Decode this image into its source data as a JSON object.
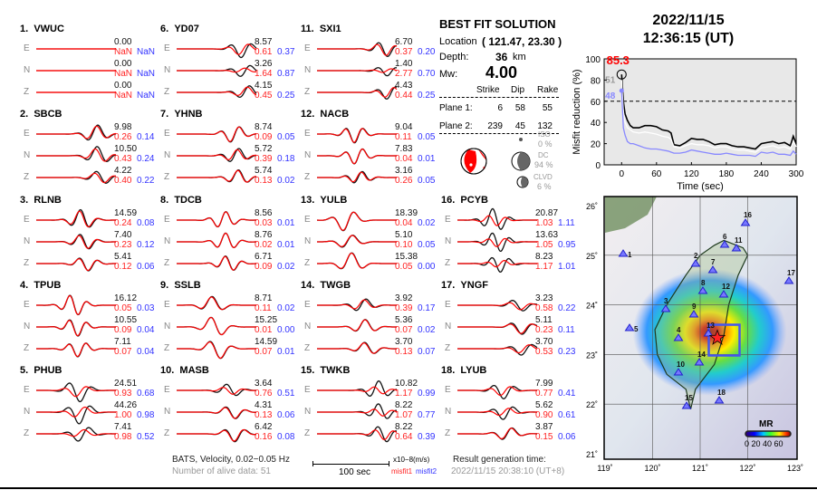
{
  "stations": [
    {
      "no": "1.",
      "name": "VWUC",
      "comps": [
        {
          "c": "E",
          "peak": "0.00",
          "m1": "NaN",
          "m2": "NaN"
        },
        {
          "c": "N",
          "peak": "0.00",
          "m1": "NaN",
          "m2": "NaN"
        },
        {
          "c": "Z",
          "peak": "0.00",
          "m1": "NaN",
          "m2": "NaN"
        }
      ]
    },
    {
      "no": "2.",
      "name": "SBCB",
      "comps": [
        {
          "c": "E",
          "peak": "9.98",
          "m1": "0.26",
          "m2": "0.14"
        },
        {
          "c": "N",
          "peak": "10.50",
          "m1": "0.43",
          "m2": "0.24"
        },
        {
          "c": "Z",
          "peak": "4.22",
          "m1": "0.40",
          "m2": "0.22"
        }
      ]
    },
    {
      "no": "3.",
      "name": "RLNB",
      "comps": [
        {
          "c": "E",
          "peak": "14.59",
          "m1": "0.24",
          "m2": "0.08"
        },
        {
          "c": "N",
          "peak": "7.40",
          "m1": "0.23",
          "m2": "0.12"
        },
        {
          "c": "Z",
          "peak": "5.41",
          "m1": "0.12",
          "m2": "0.06"
        }
      ]
    },
    {
      "no": "4.",
      "name": "TPUB",
      "comps": [
        {
          "c": "E",
          "peak": "16.12",
          "m1": "0.05",
          "m2": "0.03"
        },
        {
          "c": "N",
          "peak": "10.55",
          "m1": "0.09",
          "m2": "0.04"
        },
        {
          "c": "Z",
          "peak": "7.11",
          "m1": "0.07",
          "m2": "0.04"
        }
      ]
    },
    {
      "no": "5.",
      "name": "PHUB",
      "comps": [
        {
          "c": "E",
          "peak": "24.51",
          "m1": "0.93",
          "m2": "0.68"
        },
        {
          "c": "N",
          "peak": "44.26",
          "m1": "1.00",
          "m2": "0.98"
        },
        {
          "c": "Z",
          "peak": "7.41",
          "m1": "0.98",
          "m2": "0.52"
        }
      ]
    },
    {
      "no": "6.",
      "name": "YD07",
      "comps": [
        {
          "c": "E",
          "peak": "8.57",
          "m1": "0.61",
          "m2": "0.37"
        },
        {
          "c": "N",
          "peak": "3.26",
          "m1": "1.64",
          "m2": "0.87"
        },
        {
          "c": "Z",
          "peak": "4.15",
          "m1": "0.45",
          "m2": "0.25"
        }
      ]
    },
    {
      "no": "7.",
      "name": "YHNB",
      "comps": [
        {
          "c": "E",
          "peak": "8.74",
          "m1": "0.09",
          "m2": "0.05"
        },
        {
          "c": "N",
          "peak": "5.72",
          "m1": "0.39",
          "m2": "0.18"
        },
        {
          "c": "Z",
          "peak": "5.74",
          "m1": "0.13",
          "m2": "0.02"
        }
      ]
    },
    {
      "no": "8.",
      "name": "TDCB",
      "comps": [
        {
          "c": "E",
          "peak": "8.56",
          "m1": "0.03",
          "m2": "0.01"
        },
        {
          "c": "N",
          "peak": "8.76",
          "m1": "0.02",
          "m2": "0.01"
        },
        {
          "c": "Z",
          "peak": "6.71",
          "m1": "0.09",
          "m2": "0.02"
        }
      ]
    },
    {
      "no": "9.",
      "name": "SSLB",
      "comps": [
        {
          "c": "E",
          "peak": "8.71",
          "m1": "0.11",
          "m2": "0.02"
        },
        {
          "c": "N",
          "peak": "15.25",
          "m1": "0.01",
          "m2": "0.00"
        },
        {
          "c": "Z",
          "peak": "14.59",
          "m1": "0.07",
          "m2": "0.01"
        }
      ]
    },
    {
      "no": "10.",
      "name": "MASB",
      "comps": [
        {
          "c": "E",
          "peak": "3.64",
          "m1": "0.76",
          "m2": "0.51"
        },
        {
          "c": "N",
          "peak": "4.31",
          "m1": "0.13",
          "m2": "0.06"
        },
        {
          "c": "Z",
          "peak": "6.42",
          "m1": "0.16",
          "m2": "0.08"
        }
      ]
    },
    {
      "no": "11.",
      "name": "SXI1",
      "comps": [
        {
          "c": "E",
          "peak": "6.70",
          "m1": "0.37",
          "m2": "0.20"
        },
        {
          "c": "N",
          "peak": "1.40",
          "m1": "2.77",
          "m2": "0.70"
        },
        {
          "c": "Z",
          "peak": "4.43",
          "m1": "0.44",
          "m2": "0.25"
        }
      ]
    },
    {
      "no": "12.",
      "name": "NACB",
      "comps": [
        {
          "c": "E",
          "peak": "9.04",
          "m1": "0.11",
          "m2": "0.05"
        },
        {
          "c": "N",
          "peak": "7.83",
          "m1": "0.04",
          "m2": "0.01"
        },
        {
          "c": "Z",
          "peak": "3.16",
          "m1": "0.26",
          "m2": "0.05"
        }
      ]
    },
    {
      "no": "13.",
      "name": "YULB",
      "comps": [
        {
          "c": "E",
          "peak": "18.39",
          "m1": "0.04",
          "m2": "0.02"
        },
        {
          "c": "N",
          "peak": "5.10",
          "m1": "0.10",
          "m2": "0.05"
        },
        {
          "c": "Z",
          "peak": "15.38",
          "m1": "0.05",
          "m2": "0.00"
        }
      ]
    },
    {
      "no": "14.",
      "name": "TWGB",
      "comps": [
        {
          "c": "E",
          "peak": "3.92",
          "m1": "0.39",
          "m2": "0.17"
        },
        {
          "c": "N",
          "peak": "5.36",
          "m1": "0.07",
          "m2": "0.02"
        },
        {
          "c": "Z",
          "peak": "3.70",
          "m1": "0.13",
          "m2": "0.07"
        }
      ]
    },
    {
      "no": "15.",
      "name": "TWKB",
      "comps": [
        {
          "c": "E",
          "peak": "10.82",
          "m1": "1.17",
          "m2": "0.99"
        },
        {
          "c": "N",
          "peak": "8.22",
          "m1": "1.07",
          "m2": "0.77"
        },
        {
          "c": "Z",
          "peak": "8.22",
          "m1": "0.64",
          "m2": "0.39"
        }
      ]
    },
    {
      "no": "16.",
      "name": "PCYB",
      "comps": [
        {
          "c": "E",
          "peak": "20.87",
          "m1": "1.03",
          "m2": "1.11"
        },
        {
          "c": "N",
          "peak": "13.63",
          "m1": "1.05",
          "m2": "0.95"
        },
        {
          "c": "Z",
          "peak": "8.23",
          "m1": "1.17",
          "m2": "1.01"
        }
      ]
    },
    {
      "no": "17.",
      "name": "YNGF",
      "comps": [
        {
          "c": "E",
          "peak": "3.23",
          "m1": "0.58",
          "m2": "0.22"
        },
        {
          "c": "N",
          "peak": "5.11",
          "m1": "0.23",
          "m2": "0.11"
        },
        {
          "c": "Z",
          "peak": "3.70",
          "m1": "0.53",
          "m2": "0.23"
        }
      ]
    },
    {
      "no": "18.",
      "name": "LYUB",
      "comps": [
        {
          "c": "E",
          "peak": "7.99",
          "m1": "0.77",
          "m2": "0.41"
        },
        {
          "c": "N",
          "peak": "5.62",
          "m1": "0.90",
          "m2": "0.61"
        },
        {
          "c": "Z",
          "peak": "3.87",
          "m1": "0.15",
          "m2": "0.06"
        }
      ]
    }
  ],
  "solution": {
    "title": "BEST FIT SOLUTION",
    "location_label": "Location",
    "location_value": "( 121.47,  23.30 )",
    "depth_label": "Depth:",
    "depth_value": "36",
    "depth_unit": "km",
    "mw_label": "Mw:",
    "mw_value": "4.00",
    "headers": [
      "Strike",
      "Dip",
      "Rake"
    ],
    "planes": [
      {
        "label": "Plane 1:",
        "strike": "6",
        "dip": "58",
        "rake": "55"
      },
      {
        "label": "Plane 2:",
        "strike": "239",
        "dip": "45",
        "rake": "132"
      }
    ],
    "iso_label": "ISO",
    "iso_value": "0 %",
    "dc_label": "DC",
    "dc_value": "94 %",
    "clvd_label": "CLVD",
    "clvd_value": "6 %",
    "mechanism_color": "#ff0000"
  },
  "event": {
    "date": "2022/11/15",
    "time": "12:36:15  (UT)"
  },
  "footer": {
    "filter": "BATS, Velocity, 0.02−0.05 Hz",
    "alive": "Number of alive data: 51",
    "scale": "100 sec",
    "unit": "x10−8(m/s)",
    "misfit1": "misfit1",
    "misfit2": "misfit2",
    "gen_label": "Result generation time:",
    "gen_time": "2022/11/15 20:38:10 (UT+8)"
  },
  "map": {
    "lat_labels": [
      "26˚",
      "25˚",
      "24˚",
      "23˚",
      "22˚",
      "21˚"
    ],
    "lon_labels": [
      "119˚",
      "120˚",
      "121˚",
      "122˚",
      "123˚"
    ],
    "station_labels": [
      "1",
      "2",
      "3",
      "4",
      "5",
      "6",
      "7",
      "8",
      "9",
      "10",
      "11",
      "12",
      "13",
      "14",
      "15",
      "16",
      "17",
      "18"
    ],
    "colorbar_title": "MR",
    "colorbar_labels": "0 20 40 60",
    "station_color": "#5555ff",
    "epicenter_color": "#ff0000"
  },
  "chart_data": {
    "type": "line",
    "xlabel": "Time (sec)",
    "ylabel": "Misfit reduction (%)",
    "xlim": [
      -30,
      300
    ],
    "ylim": [
      0,
      100
    ],
    "xticks": [
      "0",
      "60",
      "120",
      "180",
      "240",
      "300"
    ],
    "yticks": [
      "0",
      "20",
      "40",
      "60",
      "80",
      "100"
    ],
    "grid": false,
    "reference_line": 60,
    "annotations": {
      "max": "85.3",
      "gray_label": "51",
      "blue_label": "48"
    },
    "x": [
      0,
      3,
      6,
      10,
      15,
      20,
      30,
      40,
      50,
      60,
      70,
      80,
      85,
      90,
      100,
      110,
      120,
      130,
      140,
      150,
      160,
      170,
      180,
      190,
      200,
      210,
      220,
      230,
      240,
      250,
      260,
      270,
      280,
      290,
      295,
      300
    ],
    "series": [
      {
        "color": "#000000",
        "values": [
          85.3,
          60,
          48,
          42,
          37,
          35,
          35,
          37,
          37,
          36,
          33,
          32,
          30,
          19,
          18,
          21,
          25,
          24,
          24,
          22,
          19,
          20,
          20,
          18,
          17,
          17,
          16,
          15,
          20,
          21,
          22,
          20,
          21,
          18,
          27,
          20
        ]
      },
      {
        "color": "#ffffff",
        "values": [
          80,
          50,
          40,
          35,
          33,
          31,
          30,
          31,
          30,
          29,
          27,
          26,
          24,
          17,
          16,
          18,
          20,
          19,
          19,
          18,
          16,
          17,
          17,
          15,
          14,
          14,
          13,
          12,
          16,
          17,
          18,
          16,
          17,
          15,
          22,
          17
        ]
      },
      {
        "color": "#8888ff",
        "values": [
          70,
          35,
          28,
          22,
          20,
          20,
          18,
          16,
          15,
          15,
          14,
          13,
          12,
          11,
          11,
          12,
          14,
          13,
          12,
          11,
          10,
          10,
          11,
          10,
          9,
          9,
          9,
          8,
          12,
          11,
          12,
          10,
          10,
          9,
          13,
          10
        ]
      }
    ]
  }
}
